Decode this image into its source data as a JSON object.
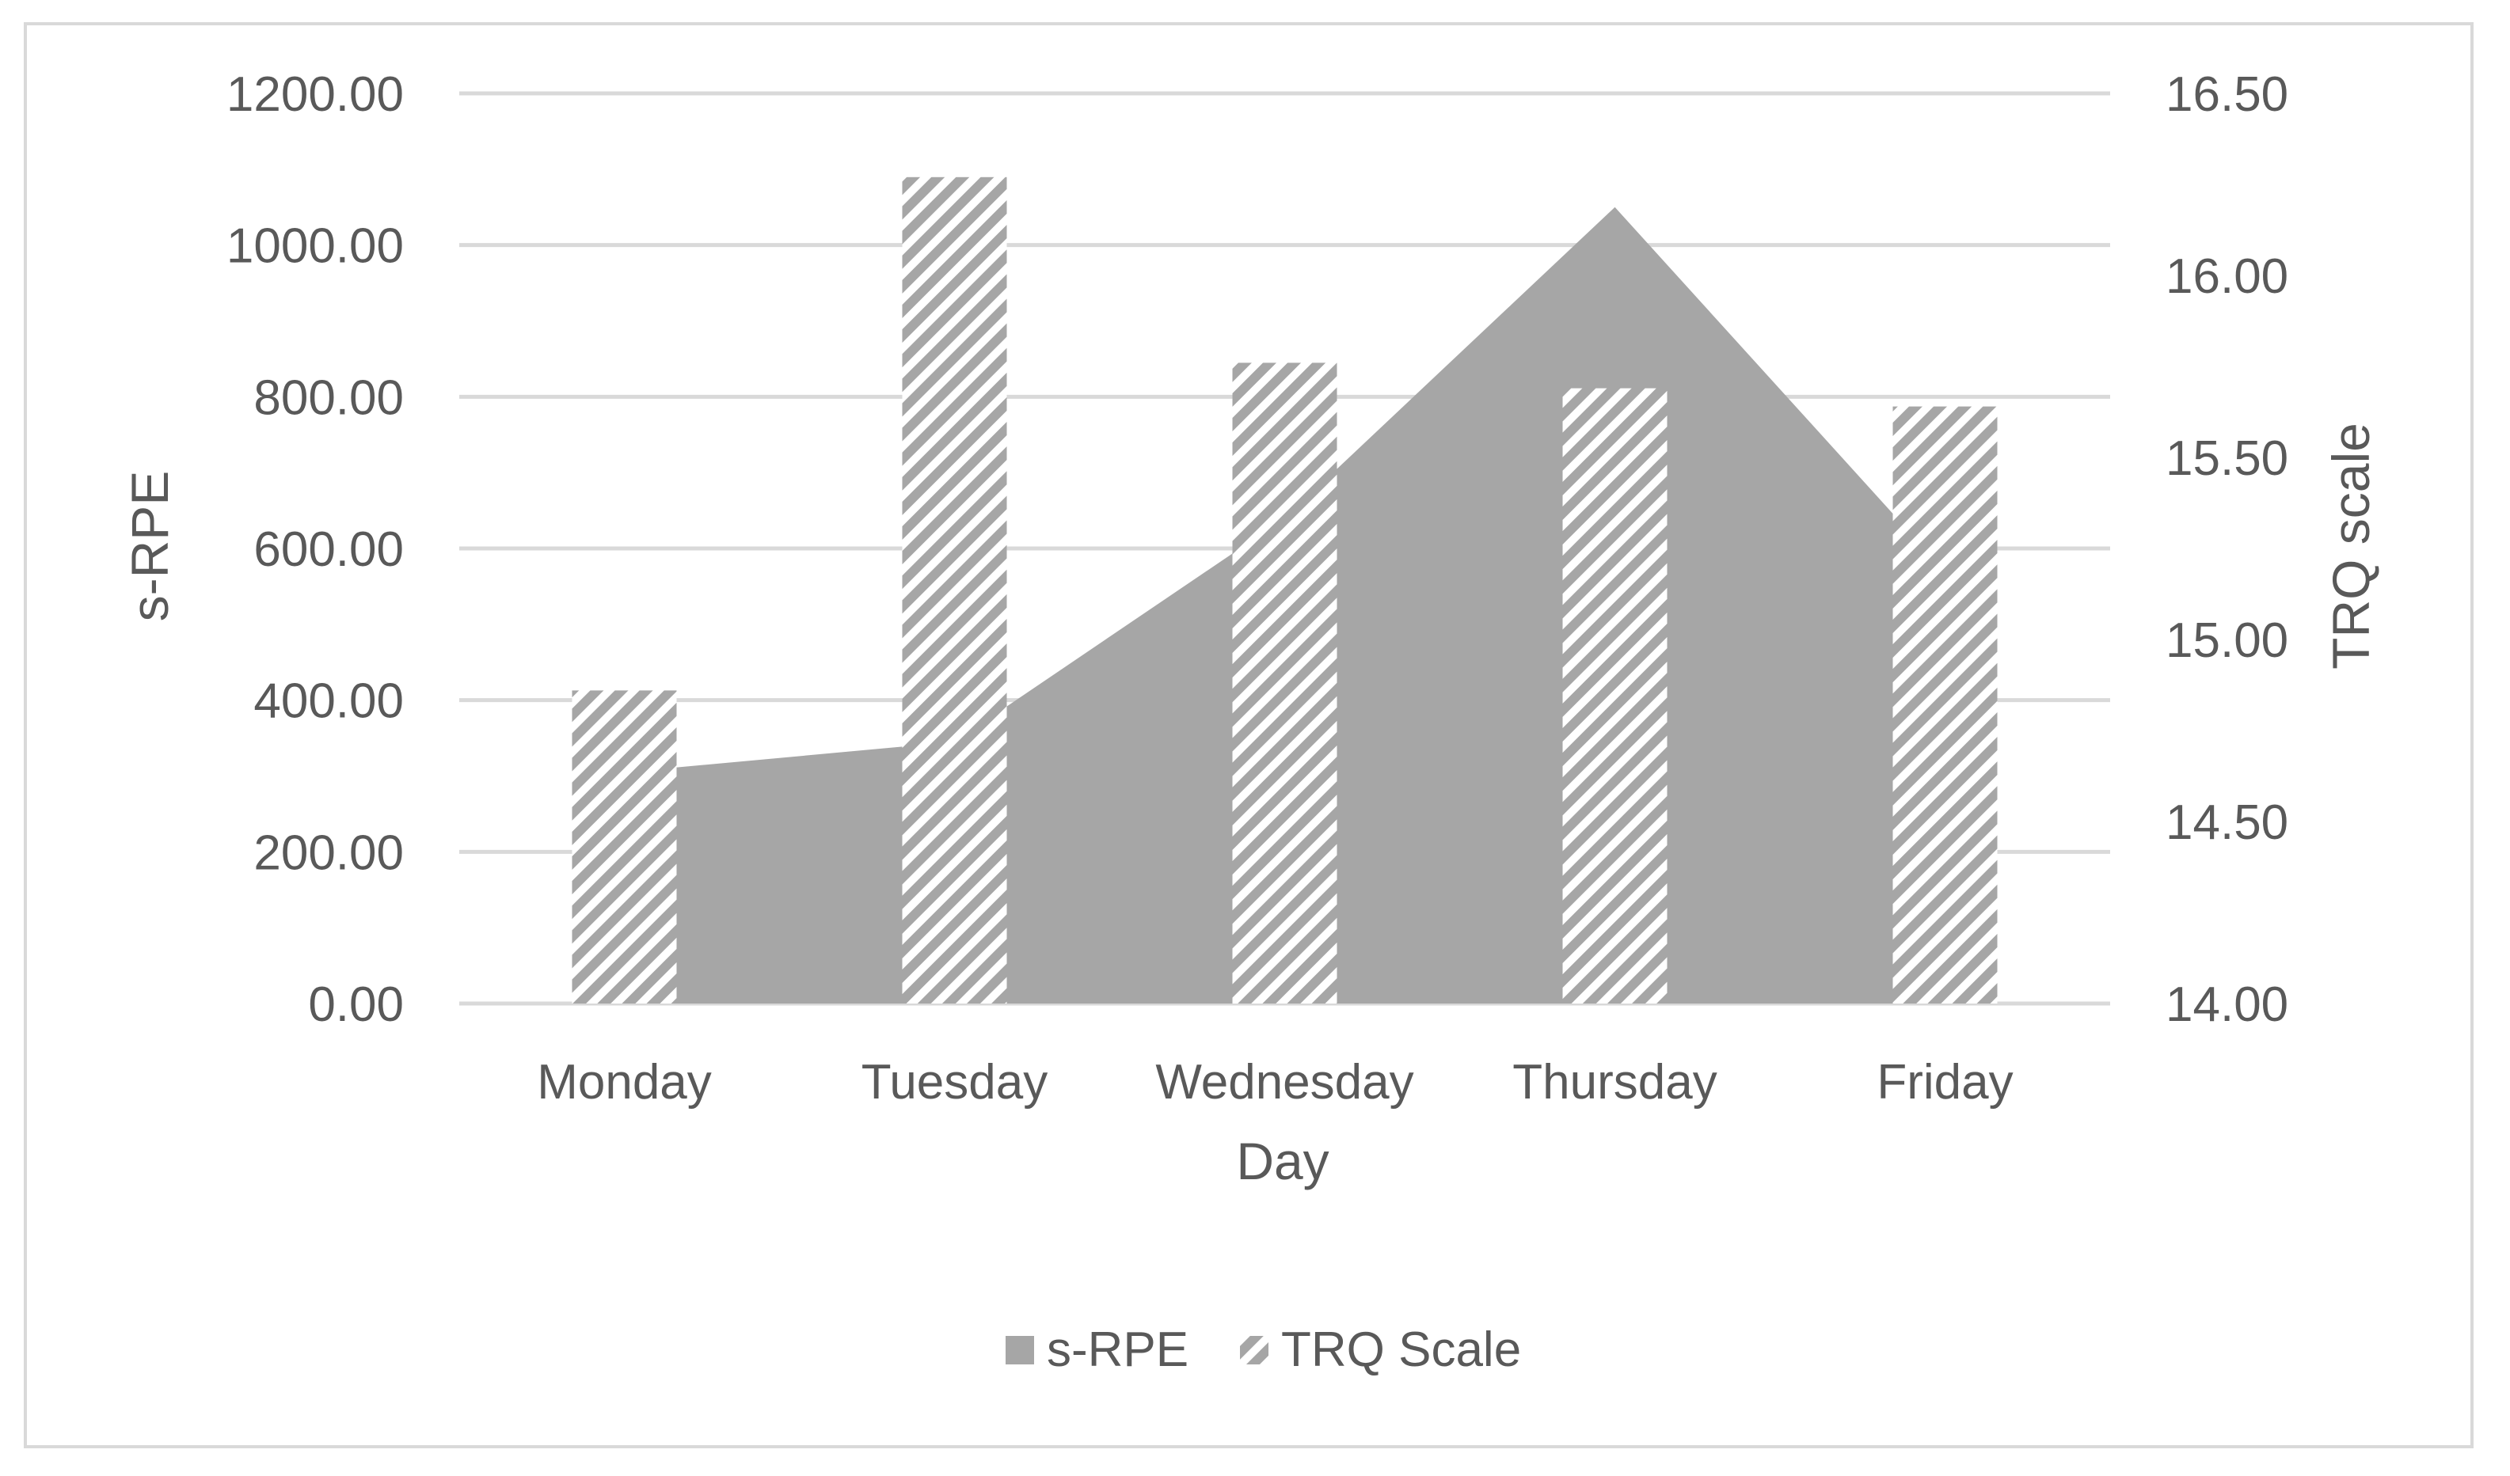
{
  "chart_data": {
    "type": "bar",
    "categories": [
      "Monday",
      "Tuesday",
      "Wednesday",
      "Thursday",
      "Friday"
    ],
    "xlabel": "Day",
    "ylabel": "s-RPE",
    "y2label": "TRQ scale",
    "ylim": [
      0,
      1200
    ],
    "y2lim": [
      14,
      16.5
    ],
    "yticks": [
      "0.00",
      "200.00",
      "400.00",
      "600.00",
      "800.00",
      "1000.00",
      "1200.00"
    ],
    "y2ticks": [
      "14.00",
      "14.50",
      "15.00",
      "15.50",
      "16.00",
      "16.50"
    ],
    "series": [
      {
        "name": "s-RPE",
        "render": "area",
        "axis": "left",
        "color": "#a6a6a6",
        "values": [
          305,
          345,
          640,
          1050,
          570
        ]
      },
      {
        "name": "TRQ Scale",
        "render": "bar",
        "axis": "right",
        "pattern": "diagonal-hatch",
        "color": "#a6a6a6",
        "values": [
          14.86,
          16.27,
          15.76,
          15.69,
          15.64
        ]
      }
    ],
    "grid": true,
    "legend_position": "bottom"
  }
}
